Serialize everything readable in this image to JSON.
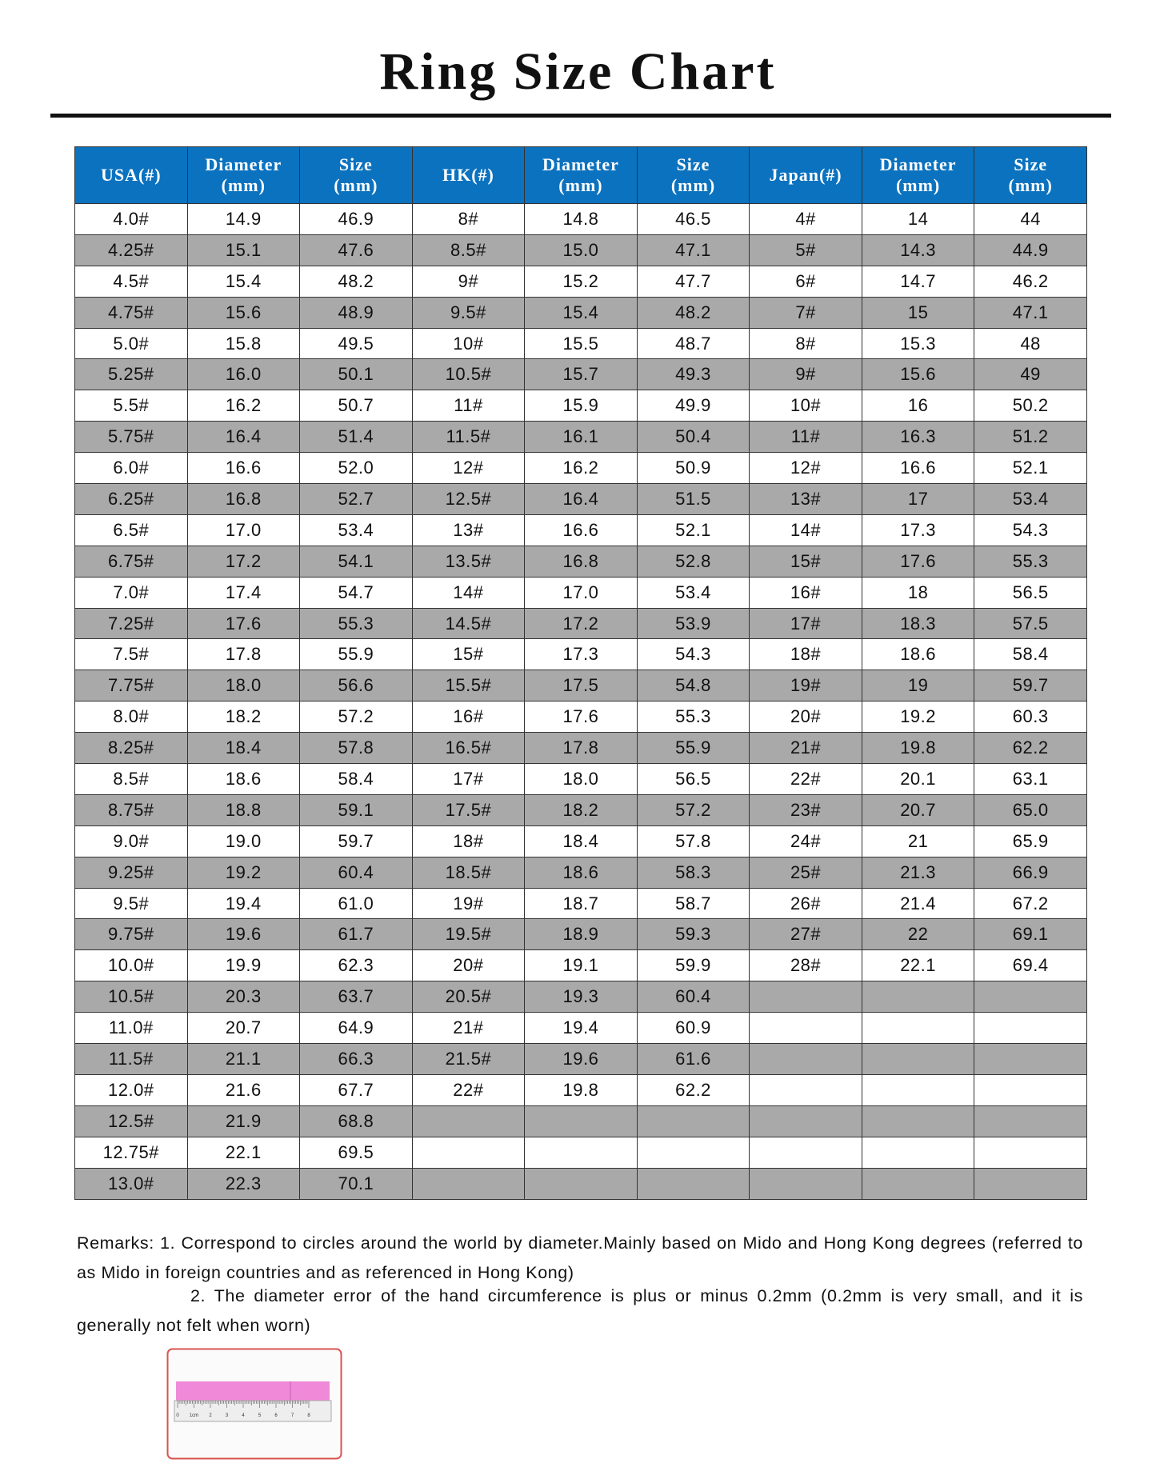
{
  "header": {
    "title": "Ring Size Chart"
  },
  "table": {
    "headers": [
      "USA(#)",
      "Diameter\n(mm)",
      "Size\n(mm)",
      "HK(#)",
      "Diameter\n(mm)",
      "Size\n(mm)",
      "Japan(#)",
      "Diameter\n(mm)",
      "Size\n(mm)"
    ],
    "groups": [
      {
        "rows": [
          [
            "4.0#",
            "14.9",
            "46.9"
          ],
          [
            "4.25#",
            "15.1",
            "47.6"
          ],
          [
            "4.5#",
            "15.4",
            "48.2"
          ],
          [
            "4.75#",
            "15.6",
            "48.9"
          ],
          [
            "5.0#",
            "15.8",
            "49.5"
          ],
          [
            "5.25#",
            "16.0",
            "50.1"
          ],
          [
            "5.5#",
            "16.2",
            "50.7"
          ],
          [
            "5.75#",
            "16.4",
            "51.4"
          ],
          [
            "6.0#",
            "16.6",
            "52.0"
          ],
          [
            "6.25#",
            "16.8",
            "52.7"
          ],
          [
            "6.5#",
            "17.0",
            "53.4"
          ],
          [
            "6.75#",
            "17.2",
            "54.1"
          ],
          [
            "7.0#",
            "17.4",
            "54.7"
          ],
          [
            "7.25#",
            "17.6",
            "55.3"
          ],
          [
            "7.5#",
            "17.8",
            "55.9"
          ],
          [
            "7.75#",
            "18.0",
            "56.6"
          ],
          [
            "8.0#",
            "18.2",
            "57.2"
          ],
          [
            "8.25#",
            "18.4",
            "57.8"
          ],
          [
            "8.5#",
            "18.6",
            "58.4"
          ],
          [
            "8.75#",
            "18.8",
            "59.1"
          ],
          [
            "9.0#",
            "19.0",
            "59.7"
          ],
          [
            "9.25#",
            "19.2",
            "60.4"
          ],
          [
            "9.5#",
            "19.4",
            "61.0"
          ],
          [
            "9.75#",
            "19.6",
            "61.7"
          ],
          [
            "10.0#",
            "19.9",
            "62.3"
          ],
          [
            "10.5#",
            "20.3",
            "63.7"
          ],
          [
            "11.0#",
            "20.7",
            "64.9"
          ],
          [
            "11.5#",
            "21.1",
            "66.3"
          ],
          [
            "12.0#",
            "21.6",
            "67.7"
          ],
          [
            "12.5#",
            "21.9",
            "68.8"
          ],
          [
            "12.75#",
            "22.1",
            "69.5"
          ],
          [
            "13.0#",
            "22.3",
            "70.1"
          ]
        ]
      },
      {
        "rows": [
          [
            "8#",
            "14.8",
            "46.5"
          ],
          [
            "8.5#",
            "15.0",
            "47.1"
          ],
          [
            "9#",
            "15.2",
            "47.7"
          ],
          [
            "9.5#",
            "15.4",
            "48.2"
          ],
          [
            "10#",
            "15.5",
            "48.7"
          ],
          [
            "10.5#",
            "15.7",
            "49.3"
          ],
          [
            "11#",
            "15.9",
            "49.9"
          ],
          [
            "11.5#",
            "16.1",
            "50.4"
          ],
          [
            "12#",
            "16.2",
            "50.9"
          ],
          [
            "12.5#",
            "16.4",
            "51.5"
          ],
          [
            "13#",
            "16.6",
            "52.1"
          ],
          [
            "13.5#",
            "16.8",
            "52.8"
          ],
          [
            "14#",
            "17.0",
            "53.4"
          ],
          [
            "14.5#",
            "17.2",
            "53.9"
          ],
          [
            "15#",
            "17.3",
            "54.3"
          ],
          [
            "15.5#",
            "17.5",
            "54.8"
          ],
          [
            "16#",
            "17.6",
            "55.3"
          ],
          [
            "16.5#",
            "17.8",
            "55.9"
          ],
          [
            "17#",
            "18.0",
            "56.5"
          ],
          [
            "17.5#",
            "18.2",
            "57.2"
          ],
          [
            "18#",
            "18.4",
            "57.8"
          ],
          [
            "18.5#",
            "18.6",
            "58.3"
          ],
          [
            "19#",
            "18.7",
            "58.7"
          ],
          [
            "19.5#",
            "18.9",
            "59.3"
          ],
          [
            "20#",
            "19.1",
            "59.9"
          ],
          [
            "20.5#",
            "19.3",
            "60.4"
          ],
          [
            "21#",
            "19.4",
            "60.9"
          ],
          [
            "21.5#",
            "19.6",
            "61.6"
          ],
          [
            "22#",
            "19.8",
            "62.2"
          ]
        ]
      },
      {
        "rows": [
          [
            "4#",
            "14",
            "44"
          ],
          [
            "5#",
            "14.3",
            "44.9"
          ],
          [
            "6#",
            "14.7",
            "46.2"
          ],
          [
            "7#",
            "15",
            "47.1"
          ],
          [
            "8#",
            "15.3",
            "48"
          ],
          [
            "9#",
            "15.6",
            "49"
          ],
          [
            "10#",
            "16",
            "50.2"
          ],
          [
            "11#",
            "16.3",
            "51.2"
          ],
          [
            "12#",
            "16.6",
            "52.1"
          ],
          [
            "13#",
            "17",
            "53.4"
          ],
          [
            "14#",
            "17.3",
            "54.3"
          ],
          [
            "15#",
            "17.6",
            "55.3"
          ],
          [
            "16#",
            "18",
            "56.5"
          ],
          [
            "17#",
            "18.3",
            "57.5"
          ],
          [
            "18#",
            "18.6",
            "58.4"
          ],
          [
            "19#",
            "19",
            "59.7"
          ],
          [
            "20#",
            "19.2",
            "60.3"
          ],
          [
            "21#",
            "19.8",
            "62.2"
          ],
          [
            "22#",
            "20.1",
            "63.1"
          ],
          [
            "23#",
            "20.7",
            "65.0"
          ],
          [
            "24#",
            "21",
            "65.9"
          ],
          [
            "25#",
            "21.3",
            "66.9"
          ],
          [
            "26#",
            "21.4",
            "67.2"
          ],
          [
            "27#",
            "22",
            "69.1"
          ],
          [
            "28#",
            "22.1",
            "69.4"
          ]
        ]
      }
    ]
  },
  "remarks": [
    "Remarks: 1. Correspond to circles around the world by diameter.Mainly based on Mido and Hong Kong degrees (referred to as Mido in foreign countries and as referenced in Hong Kong)",
    "2. The diameter error of the hand circumference is plus or minus 0.2mm (0.2mm is very small, and it is generally not felt when worn)"
  ],
  "ruler": {
    "labels": [
      "0",
      "1cm",
      "2",
      "3",
      "4",
      "5",
      "6",
      "7",
      "8"
    ]
  }
}
